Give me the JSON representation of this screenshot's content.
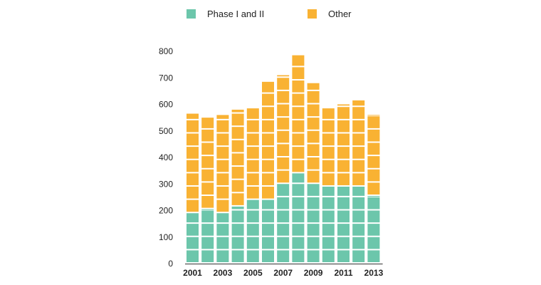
{
  "chart_data": {
    "type": "bar",
    "stacked": true,
    "title": "",
    "xlabel": "",
    "ylabel": "",
    "ylim": [
      0,
      800
    ],
    "yticks": [
      "0",
      "100",
      "200",
      "300",
      "400",
      "500",
      "600",
      "700",
      "800"
    ],
    "block_size": 50,
    "categories": [
      "2001",
      "2002",
      "2003",
      "2004",
      "2005",
      "2006",
      "2007",
      "2008",
      "2009",
      "2010",
      "2011",
      "2012",
      "2013"
    ],
    "xtick_labels": [
      "2001",
      "",
      "2003",
      "",
      "2005",
      "",
      "2007",
      "",
      "2009",
      "",
      "2011",
      "",
      "2013"
    ],
    "series": [
      {
        "name": "Phase I and II",
        "color": "#6cc6ab",
        "values": [
          190,
          205,
          190,
          215,
          240,
          240,
          300,
          340,
          300,
          290,
          290,
          290,
          255
        ]
      },
      {
        "name": "Other",
        "color": "#f9b233",
        "values": [
          375,
          345,
          370,
          365,
          345,
          445,
          410,
          445,
          380,
          295,
          310,
          325,
          305
        ]
      }
    ]
  },
  "legend": [
    {
      "label": "Phase I and II",
      "color": "#6cc6ab"
    },
    {
      "label": "Other",
      "color": "#f9b233"
    }
  ]
}
